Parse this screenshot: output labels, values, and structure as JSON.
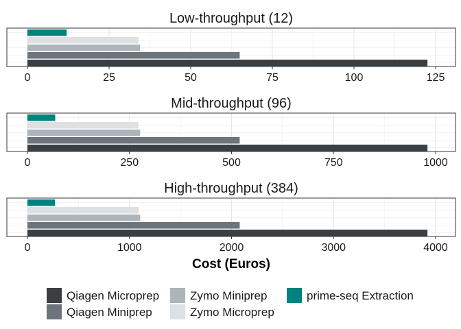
{
  "chart_data": {
    "type": "bar",
    "orientation": "horizontal",
    "xlabel": "Cost (Euros)",
    "legend_position": "bottom",
    "grid": true,
    "series_colors": {
      "Qiagen Microprep": "#3a3f44",
      "Qiagen Miniprep": "#6d747b",
      "Zymo Miniprep": "#adb4ba",
      "Zymo Microprep": "#dde1e4",
      "prime-seq Extraction": "#00827e"
    },
    "panels": [
      {
        "title": "Low-throughput (12)",
        "xlim": [
          0,
          125
        ],
        "ticks": [
          0,
          25,
          50,
          75,
          100,
          125
        ],
        "bars": [
          {
            "name": "prime-seq Extraction",
            "value": 12
          },
          {
            "name": "Zymo Microprep",
            "value": 34
          },
          {
            "name": "Zymo Miniprep",
            "value": 34.5
          },
          {
            "name": "Qiagen Miniprep",
            "value": 65
          },
          {
            "name": "Qiagen Microprep",
            "value": 122.5
          }
        ]
      },
      {
        "title": "Mid-throughput (96)",
        "xlim": [
          0,
          1000
        ],
        "ticks": [
          0,
          250,
          500,
          750,
          1000
        ],
        "bars": [
          {
            "name": "prime-seq Extraction",
            "value": 68
          },
          {
            "name": "Zymo Microprep",
            "value": 272
          },
          {
            "name": "Zymo Miniprep",
            "value": 276
          },
          {
            "name": "Qiagen Miniprep",
            "value": 520
          },
          {
            "name": "Qiagen Microprep",
            "value": 980
          }
        ]
      },
      {
        "title": "High-throughput (384)",
        "xlim": [
          0,
          4000
        ],
        "ticks": [
          0,
          1000,
          2000,
          3000,
          4000
        ],
        "bars": [
          {
            "name": "prime-seq Extraction",
            "value": 270
          },
          {
            "name": "Zymo Microprep",
            "value": 1090
          },
          {
            "name": "Zymo Miniprep",
            "value": 1105
          },
          {
            "name": "Qiagen Miniprep",
            "value": 2080
          },
          {
            "name": "Qiagen Microprep",
            "value": 3920
          }
        ]
      }
    ],
    "legend": [
      "Qiagen Microprep",
      "Qiagen Miniprep",
      "Zymo Miniprep",
      "Zymo Microprep",
      "prime-seq Extraction"
    ]
  }
}
